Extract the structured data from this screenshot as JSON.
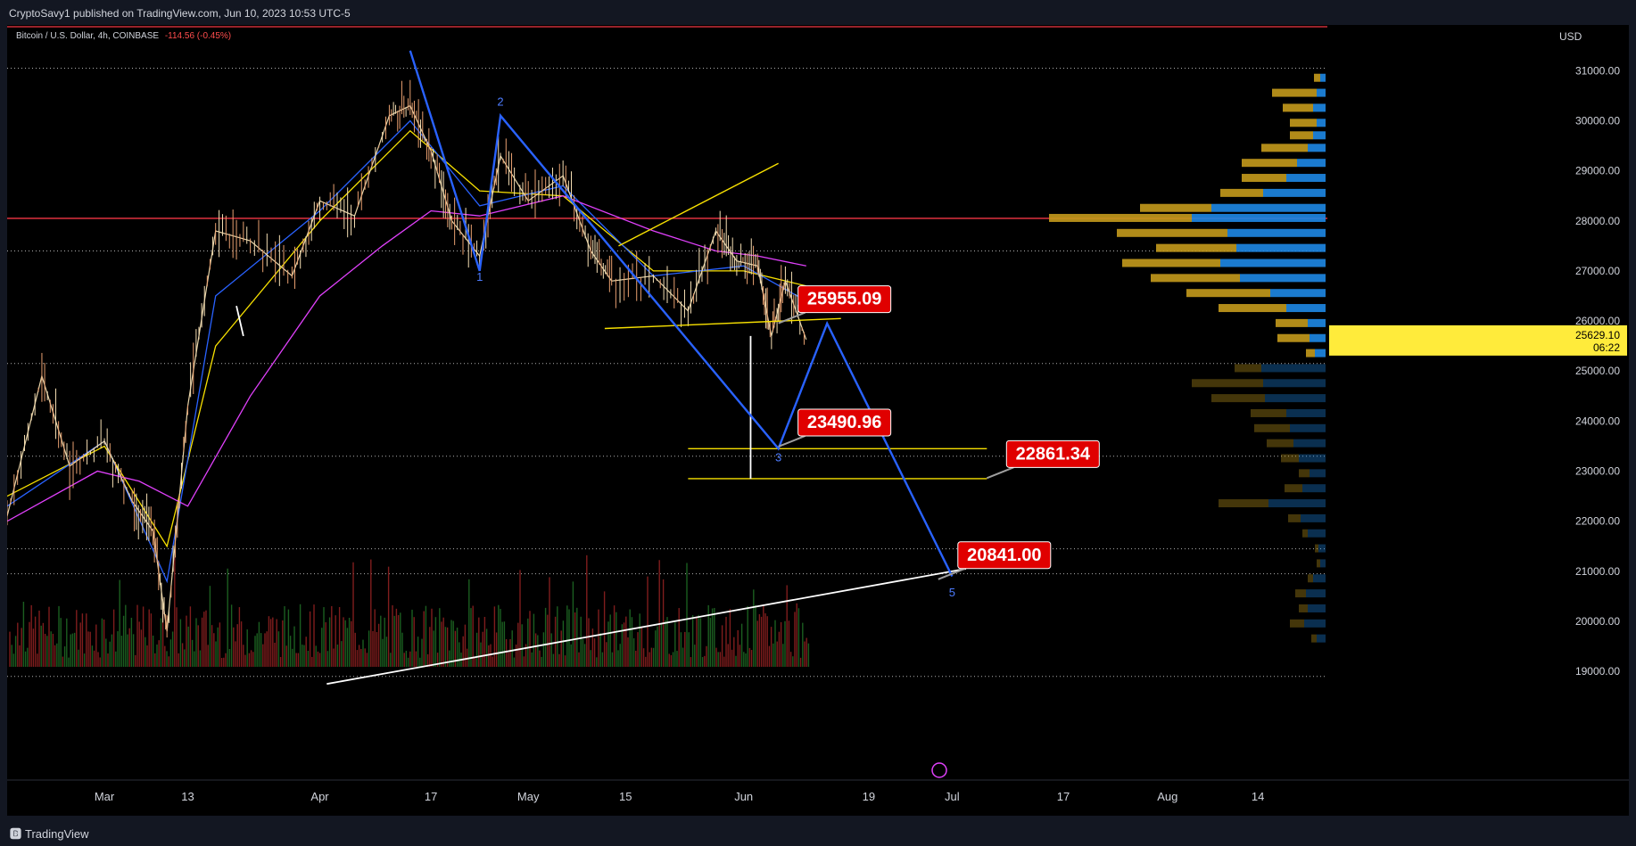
{
  "header": {
    "published_by": "CryptoSavy1 published on TradingView.com, Jun 10, 2023 10:53 UTC-5"
  },
  "legend": {
    "symbol": "Bitcoin / U.S. Dollar, 4h, COINBASE",
    "change": "-114.56 (-0.45%)"
  },
  "footer": {
    "brand": "TradingView",
    "brand_icon": "tradingview-logo-icon"
  },
  "chart_data": {
    "type": "line",
    "title": "",
    "currency_label": "USD",
    "symbol": "BTCUSD",
    "timeframe": "4h",
    "exchange": "COINBASE",
    "scale": "linear",
    "ylim": [
      18700,
      31700
    ],
    "y_ticks": [
      19000,
      20000,
      21000,
      22000,
      23000,
      24000,
      25000,
      26000,
      27000,
      28000,
      29000,
      30000,
      31000
    ],
    "y_tick_labels": [
      "19000.00",
      "20000.00",
      "21000.00",
      "22000.00",
      "23000.00",
      "24000.00",
      "25000.00",
      "26000.00",
      "27000.00",
      "28000.00",
      "29000.00",
      "30000.00",
      "31000.00"
    ],
    "x_tick_labels": [
      "Mar",
      "13",
      "Apr",
      "17",
      "May",
      "15",
      "Jun",
      "19",
      "Jul",
      "17",
      "Aug",
      "14"
    ],
    "x_tick_dates": [
      "2023-03-01",
      "2023-03-13",
      "2023-04-01",
      "2023-04-17",
      "2023-05-01",
      "2023-05-15",
      "2023-06-01",
      "2023-06-19",
      "2023-07-01",
      "2023-07-17",
      "2023-08-01",
      "2023-08-14"
    ],
    "last_price": {
      "value": 25629.1,
      "label": "25629.10",
      "countdown": "06:22",
      "color": "#ffeb3b"
    },
    "price_series": {
      "name": "BTCUSD",
      "x": [
        "2023-02-15",
        "2023-02-20",
        "2023-02-24",
        "2023-03-01",
        "2023-03-05",
        "2023-03-08",
        "2023-03-10",
        "2023-03-13",
        "2023-03-17",
        "2023-03-22",
        "2023-03-28",
        "2023-04-01",
        "2023-04-06",
        "2023-04-11",
        "2023-04-14",
        "2023-04-17",
        "2023-04-20",
        "2023-04-24",
        "2023-04-27",
        "2023-05-01",
        "2023-05-06",
        "2023-05-10",
        "2023-05-13",
        "2023-05-19",
        "2023-05-24",
        "2023-05-28",
        "2023-05-31",
        "2023-06-03",
        "2023-06-05",
        "2023-06-07",
        "2023-06-10"
      ],
      "values": [
        22100,
        24900,
        23100,
        23600,
        22400,
        21800,
        19800,
        24300,
        27800,
        27600,
        26900,
        28400,
        28100,
        30100,
        30300,
        29400,
        28000,
        27300,
        29300,
        28400,
        28900,
        27400,
        26800,
        26900,
        26200,
        27800,
        27200,
        27100,
        25700,
        26800,
        25629.1
      ]
    },
    "moving_averages": [
      {
        "color": "#f7e000",
        "x": [
          "2023-02-15",
          "2023-03-01",
          "2023-03-10",
          "2023-03-17",
          "2023-04-01",
          "2023-04-14",
          "2023-04-24",
          "2023-05-06",
          "2023-05-19",
          "2023-06-01",
          "2023-06-10"
        ],
        "values": [
          22500,
          23500,
          21500,
          25500,
          28000,
          29800,
          28600,
          28500,
          27000,
          27000,
          26700
        ]
      },
      {
        "color": "#2962ff",
        "x": [
          "2023-02-15",
          "2023-03-01",
          "2023-03-10",
          "2023-03-17",
          "2023-04-01",
          "2023-04-14",
          "2023-04-24",
          "2023-05-06",
          "2023-05-19",
          "2023-06-01",
          "2023-06-10"
        ],
        "values": [
          22300,
          23600,
          20800,
          26500,
          28200,
          30000,
          28300,
          28700,
          26900,
          27100,
          26400
        ]
      },
      {
        "color": "#e040fb",
        "x": [
          "2023-02-15",
          "2023-02-28",
          "2023-03-06",
          "2023-03-13",
          "2023-03-22",
          "2023-04-01",
          "2023-04-10",
          "2023-04-17",
          "2023-04-24",
          "2023-05-06",
          "2023-05-19",
          "2023-05-28",
          "2023-06-03",
          "2023-06-10"
        ],
        "values": [
          22000,
          23000,
          22800,
          22300,
          24500,
          26500,
          27500,
          28200,
          28100,
          28500,
          27800,
          27400,
          27300,
          27100
        ]
      }
    ],
    "horizontal_levels": [
      {
        "value": 28050,
        "color": "#f23645",
        "style": "solid"
      },
      {
        "value": 31050,
        "color": "#b0b0b0",
        "style": "dotted"
      },
      {
        "value": 27400,
        "color": "#b0b0b0",
        "style": "dotted"
      },
      {
        "value": 25150,
        "color": "#b0b0b0",
        "style": "dotted"
      },
      {
        "value": 23300,
        "color": "#b0b0b0",
        "style": "dotted"
      },
      {
        "value": 21450,
        "color": "#b0b0b0",
        "style": "dotted"
      },
      {
        "value": 20950,
        "color": "#b0b0b0",
        "style": "dotted"
      },
      {
        "value": 18900,
        "color": "#b0b0b0",
        "style": "dotted"
      }
    ],
    "trendlines": [
      {
        "color": "#f7e000",
        "x": [
          "2023-05-12",
          "2023-06-15"
        ],
        "y": [
          25850,
          26050
        ]
      },
      {
        "color": "#f7e000",
        "x": [
          "2023-05-14",
          "2023-06-06"
        ],
        "y": [
          27500,
          29150
        ]
      },
      {
        "color": "#f7e000",
        "x": [
          "2023-05-24",
          "2023-07-06"
        ],
        "y": [
          23450,
          23450
        ]
      },
      {
        "color": "#f7e000",
        "x": [
          "2023-05-24",
          "2023-07-06"
        ],
        "y": [
          22850,
          22850
        ]
      },
      {
        "color": "#ffffff",
        "x": [
          "2023-04-02",
          "2023-07-03"
        ],
        "y": [
          18750,
          21050
        ]
      },
      {
        "color": "#ffffff",
        "x": [
          "2023-06-02",
          "2023-06-02"
        ],
        "y": [
          25700,
          22850
        ]
      },
      {
        "color": "#ffffff",
        "x": [
          "2023-03-20",
          "2023-03-21"
        ],
        "y": [
          26300,
          25700
        ]
      }
    ],
    "wave_path": {
      "color": "#2962ff",
      "x": [
        "2023-04-14",
        "2023-04-24",
        "2023-04-27",
        "2023-06-06",
        "2023-06-13",
        "2023-07-01"
      ],
      "y": [
        31400,
        27000,
        30100,
        23450,
        25950,
        20900
      ]
    },
    "wave_labels": [
      {
        "text": "1",
        "x": "2023-04-24",
        "y": 26800
      },
      {
        "text": "2",
        "x": "2023-04-27",
        "y": 30300
      },
      {
        "text": "3",
        "x": "2023-06-06",
        "y": 23200
      },
      {
        "text": "5",
        "x": "2023-07-01",
        "y": 20500
      }
    ],
    "price_callouts": [
      {
        "text": "25955.09",
        "value": 25955.09,
        "x": "2023-06-06"
      },
      {
        "text": "23490.96",
        "value": 23490.96,
        "x": "2023-06-06"
      },
      {
        "text": "22861.34",
        "value": 22861.34,
        "x": "2023-07-06"
      },
      {
        "text": "20841.00",
        "value": 20841.0,
        "x": "2023-06-29"
      }
    ],
    "volume_profile": {
      "up_color": "#1e88e5",
      "down_color": "#c49a1c",
      "rows": [
        {
          "price": 30850,
          "up": 6,
          "down": 7
        },
        {
          "price": 30550,
          "up": 10,
          "down": 50
        },
        {
          "price": 30250,
          "up": 14,
          "down": 34
        },
        {
          "price": 29950,
          "up": 10,
          "down": 30
        },
        {
          "price": 29700,
          "up": 14,
          "down": 26
        },
        {
          "price": 29450,
          "up": 20,
          "down": 52
        },
        {
          "price": 29150,
          "up": 32,
          "down": 62
        },
        {
          "price": 28850,
          "up": 44,
          "down": 50
        },
        {
          "price": 28550,
          "up": 70,
          "down": 48
        },
        {
          "price": 28250,
          "up": 128,
          "down": 80
        },
        {
          "price": 28050,
          "up": 150,
          "down": 160
        },
        {
          "price": 27750,
          "up": 110,
          "down": 124
        },
        {
          "price": 27450,
          "up": 100,
          "down": 90
        },
        {
          "price": 27150,
          "up": 118,
          "down": 110
        },
        {
          "price": 26850,
          "up": 96,
          "down": 100
        },
        {
          "price": 26550,
          "up": 62,
          "down": 94
        },
        {
          "price": 26250,
          "up": 44,
          "down": 76
        },
        {
          "price": 25950,
          "up": 20,
          "down": 36
        },
        {
          "price": 25650,
          "up": 18,
          "down": 36
        },
        {
          "price": 25350,
          "up": 12,
          "down": 10
        },
        {
          "price": 25050,
          "up": 72,
          "down": 30
        },
        {
          "price": 24750,
          "up": 70,
          "down": 80
        },
        {
          "price": 24450,
          "up": 68,
          "down": 60
        },
        {
          "price": 24150,
          "up": 44,
          "down": 40
        },
        {
          "price": 23850,
          "up": 40,
          "down": 40
        },
        {
          "price": 23550,
          "up": 36,
          "down": 30
        },
        {
          "price": 23250,
          "up": 30,
          "down": 20
        },
        {
          "price": 22950,
          "up": 18,
          "down": 12
        },
        {
          "price": 22650,
          "up": 26,
          "down": 20
        },
        {
          "price": 22350,
          "up": 64,
          "down": 56
        },
        {
          "price": 22050,
          "up": 28,
          "down": 14
        },
        {
          "price": 21750,
          "up": 20,
          "down": 6
        },
        {
          "price": 21450,
          "up": 8,
          "down": 4
        },
        {
          "price": 21150,
          "up": 6,
          "down": 4
        },
        {
          "price": 20850,
          "up": 14,
          "down": 6
        },
        {
          "price": 20550,
          "up": 22,
          "down": 12
        },
        {
          "price": 20250,
          "up": 20,
          "down": 10
        },
        {
          "price": 19950,
          "up": 24,
          "down": 16
        },
        {
          "price": 19650,
          "up": 10,
          "down": 6
        }
      ]
    }
  },
  "colors": {
    "background": "#000000",
    "frame": "#131722",
    "text": "#d1d4dc",
    "callout_bg": "#e00000",
    "callout_text": "#ffffff"
  }
}
